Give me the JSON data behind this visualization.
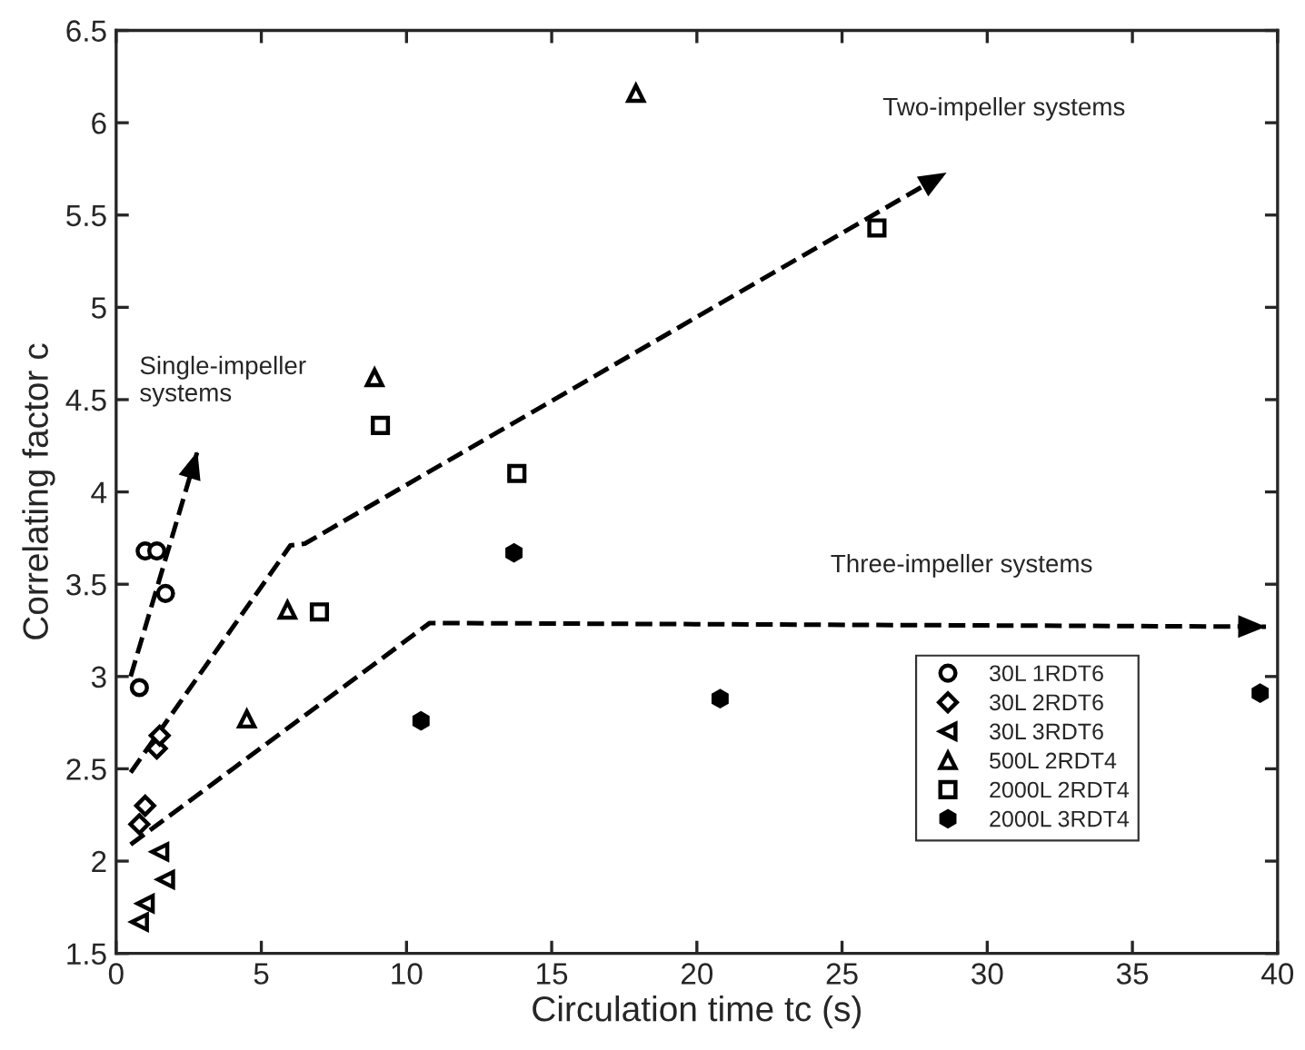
{
  "chart_data": {
    "type": "scatter",
    "xlabel": "Circulation time tc (s)",
    "ylabel": "Correlating factor c",
    "xlim": [
      0,
      40
    ],
    "ylim": [
      1.5,
      6.5
    ],
    "xticks": [
      0,
      5,
      10,
      15,
      20,
      25,
      30,
      35,
      40
    ],
    "yticks": [
      1.5,
      2,
      2.5,
      3,
      3.5,
      4,
      4.5,
      5,
      5.5,
      6,
      6.5
    ],
    "grid": false,
    "legend": "right",
    "annotations": [
      "Single-impeller\nsystems",
      "Two-impeller systems",
      "Three-impeller systems"
    ],
    "series": [
      {
        "name": "30L 1RDT6",
        "color": "#000000",
        "marker": "circle",
        "x": [
          0.8,
          1.0,
          1.4,
          1.7
        ],
        "values": [
          2.94,
          3.68,
          3.68,
          3.45
        ]
      },
      {
        "name": "30L 2RDT6",
        "color": "#000000",
        "marker": "diamond",
        "x": [
          0.8,
          1.0,
          1.4,
          1.5
        ],
        "values": [
          2.2,
          2.3,
          2.61,
          2.68
        ]
      },
      {
        "name": "30L 3RDT6",
        "color": "#000000",
        "marker": "triangle-left",
        "x": [
          0.8,
          1.0,
          1.5,
          1.7
        ],
        "values": [
          1.67,
          1.77,
          2.05,
          1.9
        ]
      },
      {
        "name": "500L 2RDT4",
        "color": "#000000",
        "marker": "triangle",
        "x": [
          4.5,
          5.9,
          8.9,
          17.9
        ],
        "values": [
          2.77,
          3.36,
          4.62,
          6.16
        ]
      },
      {
        "name": "2000L 2RDT4",
        "color": "#000000",
        "marker": "square",
        "x": [
          7.0,
          9.1,
          13.8,
          26.2
        ],
        "values": [
          3.35,
          4.36,
          4.1,
          5.43
        ]
      },
      {
        "name": "2000L 3RDT4",
        "color": "#000000",
        "marker": "star",
        "x": [
          10.5,
          13.7,
          20.8,
          39.4
        ],
        "values": [
          2.76,
          3.67,
          2.88,
          2.91
        ]
      },
      {
        "type": "line",
        "color": "#000000",
        "line_style": "dashed",
        "x": [
          0.5,
          2.8
        ],
        "values": [
          3.0,
          4.22
        ]
      },
      {
        "type": "line",
        "color": "#000000",
        "line_style": "dashed",
        "x": [
          0.5,
          6.0,
          6.5,
          28.6
        ],
        "values": [
          2.48,
          3.71,
          3.72,
          5.73
        ]
      },
      {
        "type": "line",
        "color": "#000000",
        "line_style": "dashed",
        "x": [
          0.5,
          10.8,
          39.6
        ],
        "values": [
          2.09,
          3.29,
          3.27
        ]
      }
    ]
  }
}
